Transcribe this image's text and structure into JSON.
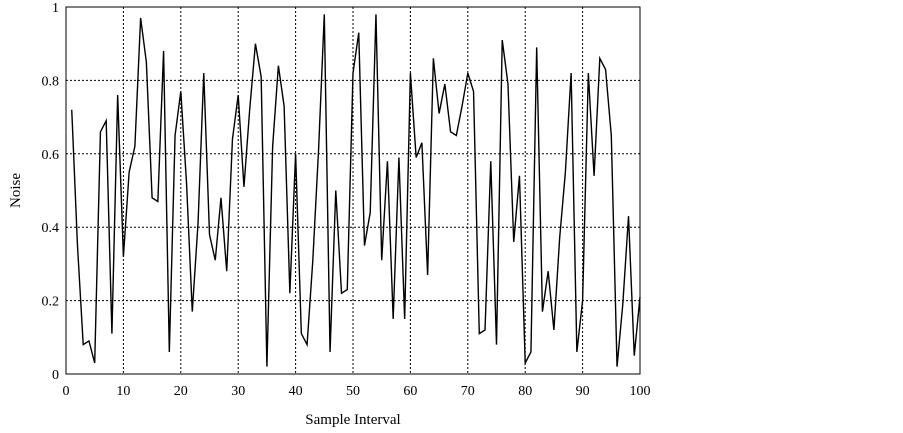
{
  "chart_data": {
    "type": "line",
    "title": "",
    "xlabel": "Sample Interval",
    "ylabel": "Noise",
    "xlim": [
      0,
      100
    ],
    "ylim": [
      0,
      1
    ],
    "xticks": [
      0,
      10,
      20,
      30,
      40,
      50,
      60,
      70,
      80,
      90,
      100
    ],
    "yticks": [
      0,
      0.2,
      0.4,
      0.6,
      0.8,
      1
    ],
    "ytick_labels": [
      "0",
      "0.2",
      "0.4",
      "0.6",
      "0.8",
      "1"
    ],
    "grid": true,
    "grid_style": "dotted",
    "line_color": "#000000",
    "series": [
      {
        "x": [
          1,
          2,
          3,
          4,
          5,
          6,
          7,
          8,
          9,
          10,
          11,
          12,
          13,
          14,
          15,
          16,
          17,
          18,
          19,
          20,
          21,
          22,
          23,
          24,
          25,
          26,
          27,
          28,
          29,
          30,
          31,
          32,
          33,
          34,
          35,
          36,
          37,
          38,
          39,
          40,
          41,
          42,
          43,
          44,
          45,
          46,
          47,
          48,
          49,
          50,
          51,
          52,
          53,
          54,
          55,
          56,
          57,
          58,
          59,
          60,
          61,
          62,
          63,
          64,
          65,
          66,
          67,
          68,
          69,
          70,
          71,
          72,
          73,
          74,
          75,
          76,
          77,
          78,
          79,
          80,
          81,
          82,
          83,
          84,
          85,
          86,
          87,
          88,
          89,
          90,
          91,
          92,
          93,
          94,
          95,
          96,
          97,
          98,
          99,
          100
        ],
        "values": [
          0.72,
          0.35,
          0.08,
          0.09,
          0.03,
          0.66,
          0.69,
          0.11,
          0.76,
          0.32,
          0.55,
          0.62,
          0.97,
          0.85,
          0.48,
          0.47,
          0.88,
          0.06,
          0.65,
          0.77,
          0.52,
          0.17,
          0.41,
          0.82,
          0.38,
          0.31,
          0.48,
          0.28,
          0.64,
          0.76,
          0.51,
          0.72,
          0.9,
          0.81,
          0.02,
          0.62,
          0.84,
          0.73,
          0.22,
          0.6,
          0.11,
          0.08,
          0.31,
          0.61,
          0.98,
          0.06,
          0.5,
          0.22,
          0.23,
          0.82,
          0.93,
          0.35,
          0.44,
          0.98,
          0.31,
          0.58,
          0.15,
          0.59,
          0.15,
          0.82,
          0.59,
          0.63,
          0.27,
          0.86,
          0.71,
          0.79,
          0.66,
          0.65,
          0.73,
          0.82,
          0.77,
          0.11,
          0.12,
          0.58,
          0.08,
          0.91,
          0.79,
          0.36,
          0.54,
          0.03,
          0.06,
          0.89,
          0.17,
          0.28,
          0.12,
          0.37,
          0.55,
          0.82,
          0.06,
          0.2,
          0.82,
          0.54,
          0.86,
          0.83,
          0.65,
          0.02,
          0.19,
          0.43,
          0.05,
          0.21
        ]
      }
    ]
  }
}
